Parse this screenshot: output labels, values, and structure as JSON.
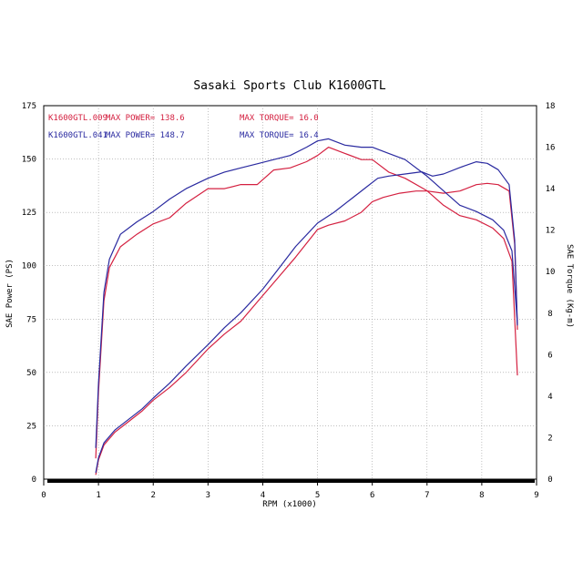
{
  "chart_data": {
    "type": "line",
    "title": "Sasaki Sports Club K1600GTL",
    "xlabel": "RPM (x1000)",
    "ylabel_left": "SAE Power (PS)",
    "ylabel_right": "SAE Torque (Kg-m)",
    "xlim": [
      0,
      9
    ],
    "ylim_left": [
      0,
      175
    ],
    "ylim_right": [
      0,
      18
    ],
    "x_ticks": [
      "0",
      "1",
      "2",
      "3",
      "4",
      "5",
      "6",
      "7",
      "8",
      "9"
    ],
    "y_left_ticks": [
      "0",
      "25",
      "50",
      "75",
      "100",
      "125",
      "150",
      "175"
    ],
    "y_right_ticks": [
      "0",
      "2",
      "4",
      "6",
      "8",
      "10",
      "12",
      "14",
      "16",
      "18"
    ],
    "grid": true,
    "legend": [
      {
        "name": "K1600GTL.009",
        "power_label": "MAX POWER= 138.6",
        "torque_label": "MAX TORQUE= 16.0",
        "color": "#d42040"
      },
      {
        "name": "K1600GTL.041",
        "power_label": "MAX POWER= 148.7",
        "torque_label": "MAX TORQUE= 16.4",
        "color": "#2a2aa0"
      }
    ],
    "series": [
      {
        "name": "K1600GTL.009",
        "color": "#d42040",
        "power": {
          "x": [
            0.95,
            1.0,
            1.1,
            1.3,
            1.5,
            1.8,
            2.0,
            2.3,
            2.6,
            3.0,
            3.3,
            3.6,
            4.0,
            4.3,
            4.6,
            5.0,
            5.2,
            5.5,
            5.8,
            6.0,
            6.2,
            6.5,
            6.8,
            7.0,
            7.3,
            7.6,
            7.9,
            8.1,
            8.3,
            8.5,
            8.6,
            8.65
          ],
          "values": [
            2,
            9,
            16,
            22,
            26,
            32,
            37,
            43,
            50,
            61,
            68,
            74,
            86,
            95,
            104,
            117,
            119,
            121,
            125,
            130,
            132,
            134,
            135,
            135,
            134,
            135,
            138,
            138.6,
            138,
            135,
            110,
            70
          ]
        },
        "torque": {
          "x": [
            0.95,
            1.0,
            1.1,
            1.2,
            1.4,
            1.7,
            2.0,
            2.3,
            2.6,
            3.0,
            3.3,
            3.6,
            3.9,
            4.2,
            4.5,
            4.8,
            5.0,
            5.2,
            5.5,
            5.8,
            6.0,
            6.3,
            6.6,
            7.0,
            7.3,
            7.6,
            7.9,
            8.2,
            8.4,
            8.55,
            8.65
          ],
          "values": [
            1.0,
            4.2,
            8.6,
            10.2,
            11.2,
            11.8,
            12.3,
            12.6,
            13.3,
            14.0,
            14.0,
            14.2,
            14.2,
            14.9,
            15.0,
            15.3,
            15.6,
            16.0,
            15.7,
            15.4,
            15.4,
            14.8,
            14.5,
            13.9,
            13.2,
            12.7,
            12.5,
            12.1,
            11.6,
            10.5,
            5.0
          ]
        }
      },
      {
        "name": "K1600GTL.041",
        "color": "#2a2aa0",
        "power": {
          "x": [
            0.95,
            1.0,
            1.1,
            1.3,
            1.5,
            1.8,
            2.0,
            2.3,
            2.6,
            3.0,
            3.3,
            3.6,
            4.0,
            4.3,
            4.6,
            5.0,
            5.3,
            5.6,
            5.9,
            6.1,
            6.3,
            6.6,
            6.9,
            7.1,
            7.3,
            7.6,
            7.9,
            8.1,
            8.3,
            8.5,
            8.6,
            8.65
          ],
          "values": [
            3,
            10,
            17,
            23,
            27,
            33,
            38,
            45,
            53,
            63,
            71,
            78,
            89,
            99,
            109,
            120,
            125,
            131,
            137,
            141,
            142,
            143,
            144,
            142,
            143,
            146,
            148.7,
            148,
            145,
            138,
            112,
            72
          ]
        },
        "torque": {
          "x": [
            0.95,
            1.0,
            1.1,
            1.2,
            1.4,
            1.7,
            2.0,
            2.3,
            2.6,
            3.0,
            3.3,
            3.6,
            3.9,
            4.2,
            4.5,
            4.8,
            5.0,
            5.2,
            5.5,
            5.8,
            6.0,
            6.3,
            6.6,
            7.0,
            7.3,
            7.6,
            7.9,
            8.2,
            8.4,
            8.55,
            8.65
          ],
          "values": [
            1.5,
            4.6,
            9.0,
            10.6,
            11.8,
            12.4,
            12.9,
            13.5,
            14.0,
            14.5,
            14.8,
            15.0,
            15.2,
            15.4,
            15.6,
            16.0,
            16.3,
            16.4,
            16.1,
            16.0,
            16.0,
            15.7,
            15.4,
            14.6,
            13.9,
            13.2,
            12.9,
            12.5,
            12.0,
            11.0,
            7.5
          ]
        }
      }
    ]
  }
}
